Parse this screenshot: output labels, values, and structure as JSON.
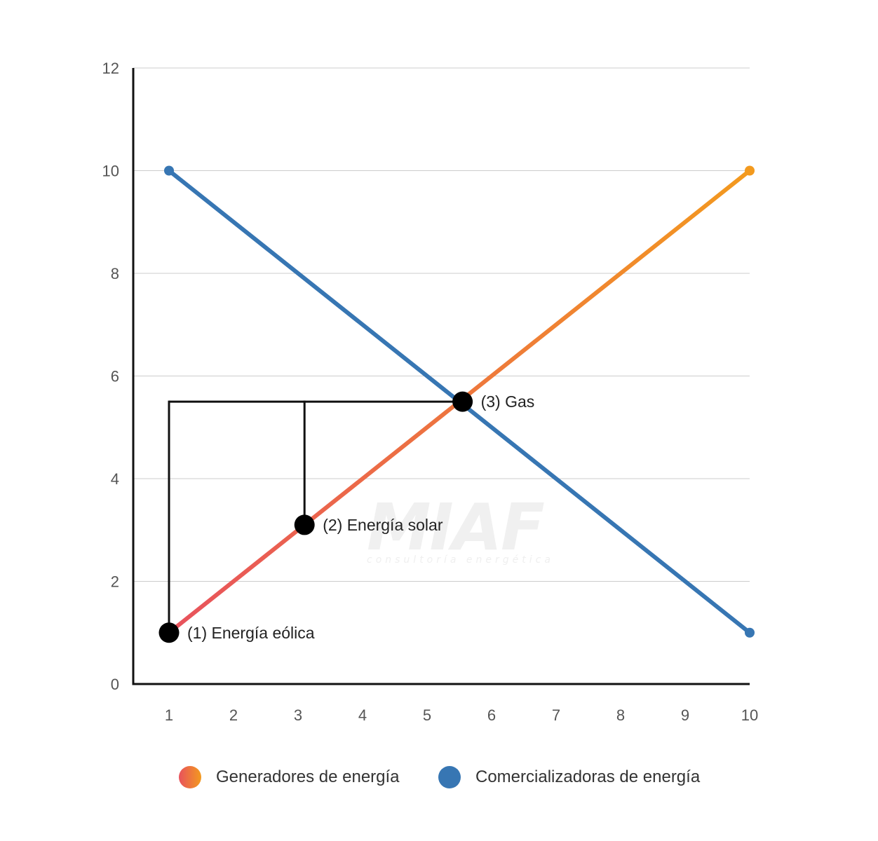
{
  "chart_data": {
    "type": "line",
    "title": "",
    "xlabel": "",
    "ylabel": "",
    "x_ticks": [
      "1",
      "2",
      "3",
      "4",
      "5",
      "6",
      "7",
      "8",
      "9",
      "10"
    ],
    "y_ticks": [
      "0",
      "2",
      "4",
      "6",
      "8",
      "10",
      "12"
    ],
    "xlim": [
      0.45,
      10
    ],
    "ylim": [
      0,
      12
    ],
    "grid": true,
    "legend_position": "bottom",
    "series": [
      {
        "name": "Generadores de energía",
        "color_start": "#e8525d",
        "color_end": "#f39a1e",
        "points": [
          [
            1,
            1
          ],
          [
            10,
            10
          ]
        ]
      },
      {
        "name": "Comercializadoras de energía",
        "color": "#3776b3",
        "points": [
          [
            1,
            10
          ],
          [
            10,
            1
          ]
        ]
      }
    ],
    "annotations": [
      {
        "label": "(1) Energía eólica",
        "x": 1.0,
        "y": 1.0
      },
      {
        "label": "(2) Energía solar",
        "x": 3.1,
        "y": 3.1
      },
      {
        "label": "(3) Gas",
        "x": 5.55,
        "y": 5.5
      }
    ],
    "reference_level": 5.5,
    "watermark": {
      "main": "MIAF",
      "sub": "consultoría energética"
    }
  }
}
